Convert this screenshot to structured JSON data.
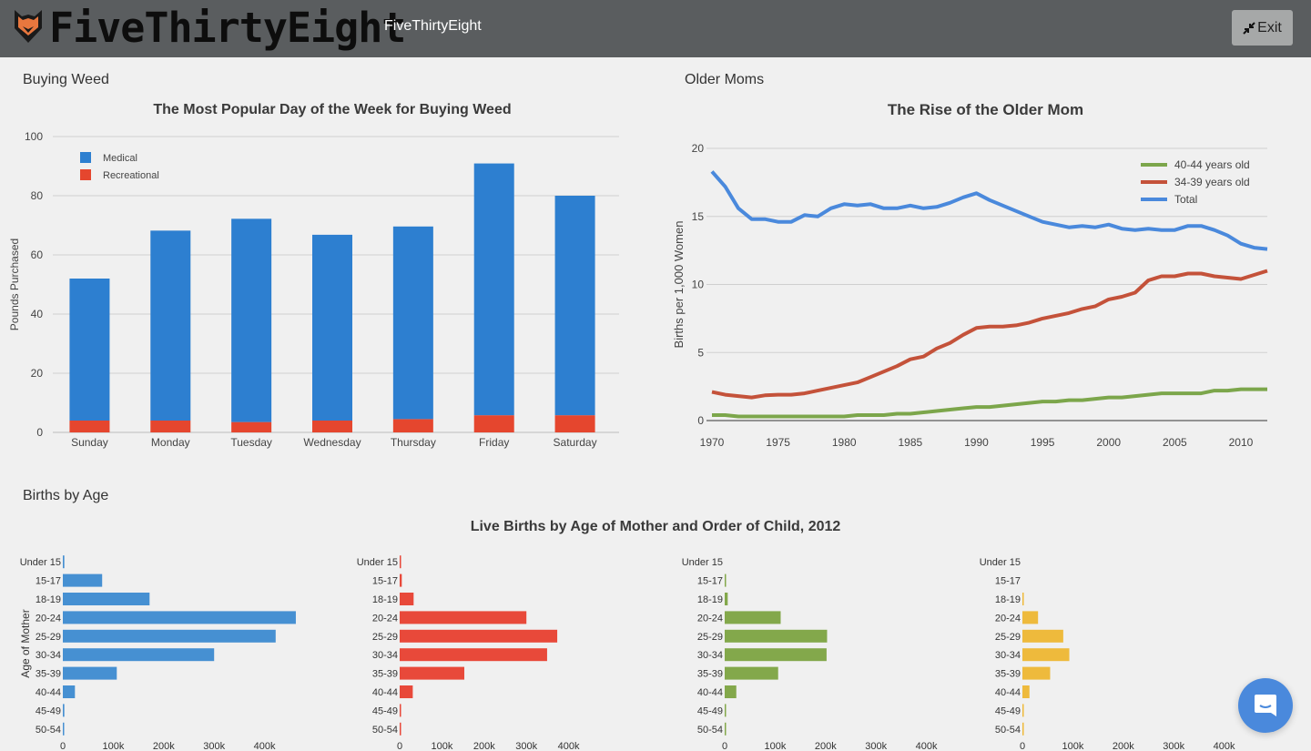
{
  "header": {
    "brand": "FiveThirtyEight",
    "subtitle": "FiveThirtyEight",
    "exit_label": "Exit",
    "logo_icon": "fox-icon",
    "exit_icon": "compress-icon"
  },
  "sections": {
    "weed": "Buying Weed",
    "moms": "Older Moms",
    "births": "Births by Age"
  },
  "chat": {
    "icon": "chat-bubble-icon"
  },
  "colors": {
    "medical": "#2d7fd0",
    "recreational": "#e5462e",
    "green": "#7ca64b",
    "red": "#c4523a",
    "blue": "#4a89dc",
    "b1": "#4690d2",
    "b2": "#e8493a",
    "b3": "#83a84b",
    "b4": "#eeba3c"
  },
  "chart_data": [
    {
      "type": "bar",
      "stacked": true,
      "title": "The Most Popular Day of the Week for Buying Weed",
      "xlabel": "",
      "ylabel": "Pounds Purchased",
      "ylim": [
        0,
        100
      ],
      "yticks": [
        0,
        20,
        40,
        60,
        80,
        100
      ],
      "categories": [
        "Sunday",
        "Monday",
        "Tuesday",
        "Wednesday",
        "Thursday",
        "Friday",
        "Saturday"
      ],
      "series": [
        {
          "name": "Recreational",
          "values": [
            4,
            4,
            3.5,
            4,
            4.5,
            5.8,
            5.8
          ]
        },
        {
          "name": "Medical",
          "values": [
            48,
            64.2,
            68.7,
            62.8,
            65.1,
            85.1,
            74.2
          ]
        }
      ],
      "legend": [
        "Medical",
        "Recreational"
      ],
      "legend_position": "top-left",
      "grid": true
    },
    {
      "type": "line",
      "title": "The Rise of the Older Mom",
      "xlabel": "",
      "ylabel": "Births per 1,000 Women",
      "ylim": [
        0,
        20
      ],
      "xlim": [
        1970,
        2012
      ],
      "yticks": [
        0,
        5,
        10,
        15,
        20
      ],
      "xticks": [
        1970,
        1975,
        1980,
        1985,
        1990,
        1995,
        2000,
        2005,
        2010
      ],
      "x": [
        1970,
        1971,
        1972,
        1973,
        1974,
        1975,
        1976,
        1977,
        1978,
        1979,
        1980,
        1981,
        1982,
        1983,
        1984,
        1985,
        1986,
        1987,
        1988,
        1989,
        1990,
        1991,
        1992,
        1993,
        1994,
        1995,
        1996,
        1997,
        1998,
        1999,
        2000,
        2001,
        2002,
        2003,
        2004,
        2005,
        2006,
        2007,
        2008,
        2009,
        2010,
        2011,
        2012
      ],
      "series": [
        {
          "name": "40-44 years old",
          "values": [
            0.4,
            0.4,
            0.3,
            0.3,
            0.3,
            0.3,
            0.3,
            0.3,
            0.3,
            0.3,
            0.3,
            0.4,
            0.4,
            0.4,
            0.5,
            0.5,
            0.6,
            0.7,
            0.8,
            0.9,
            1.0,
            1.0,
            1.1,
            1.2,
            1.3,
            1.4,
            1.4,
            1.5,
            1.5,
            1.6,
            1.7,
            1.7,
            1.8,
            1.9,
            2.0,
            2.0,
            2.0,
            2.0,
            2.2,
            2.2,
            2.3,
            2.3,
            2.3
          ]
        },
        {
          "name": "34-39 years old",
          "values": [
            2.1,
            1.9,
            1.8,
            1.7,
            1.85,
            1.9,
            1.9,
            2.0,
            2.2,
            2.4,
            2.6,
            2.8,
            3.2,
            3.6,
            4.0,
            4.5,
            4.7,
            5.3,
            5.7,
            6.3,
            6.8,
            6.9,
            6.9,
            7.0,
            7.2,
            7.5,
            7.7,
            7.9,
            8.2,
            8.4,
            8.9,
            9.1,
            9.4,
            10.3,
            10.6,
            10.6,
            10.8,
            10.8,
            10.6,
            10.5,
            10.4,
            10.7,
            11.0
          ]
        },
        {
          "name": "Total",
          "values": [
            18.3,
            17.2,
            15.6,
            14.8,
            14.8,
            14.6,
            14.6,
            15.1,
            15.0,
            15.6,
            15.9,
            15.8,
            15.9,
            15.6,
            15.6,
            15.8,
            15.6,
            15.7,
            16.0,
            16.4,
            16.7,
            16.2,
            15.8,
            15.4,
            15.0,
            14.6,
            14.4,
            14.2,
            14.3,
            14.2,
            14.4,
            14.1,
            14.0,
            14.1,
            14.0,
            14.0,
            14.3,
            14.3,
            14.0,
            13.6,
            13.0,
            12.7,
            12.6
          ]
        }
      ],
      "legend_position": "top-right",
      "grid": true
    },
    {
      "type": "bar",
      "orientation": "horizontal",
      "title": "Live Births by Age of Mother and Order of Child, 2012",
      "ylabel": "Age of Mother",
      "xlim": [
        0,
        400000
      ],
      "xticks": [
        "0",
        "100k",
        "200k",
        "300k",
        "400k"
      ],
      "categories": [
        "Under 15",
        "15-17",
        "18-19",
        "20-24",
        "25-29",
        "30-34",
        "35-39",
        "40-44",
        "45-49",
        "50-54"
      ],
      "panels": [
        {
          "values": [
            3000,
            78000,
            172000,
            462000,
            422000,
            300000,
            107000,
            24000,
            3000,
            1000
          ]
        },
        {
          "values": [
            1000,
            5000,
            33000,
            300000,
            373000,
            349000,
            153000,
            31000,
            2000,
            1000
          ]
        },
        {
          "values": [
            0,
            1000,
            6000,
            111000,
            203000,
            202000,
            106000,
            23000,
            2000,
            1000
          ]
        },
        {
          "values": [
            0,
            0,
            1000,
            31000,
            81000,
            93000,
            55000,
            14000,
            2000,
            1000
          ]
        }
      ]
    }
  ]
}
